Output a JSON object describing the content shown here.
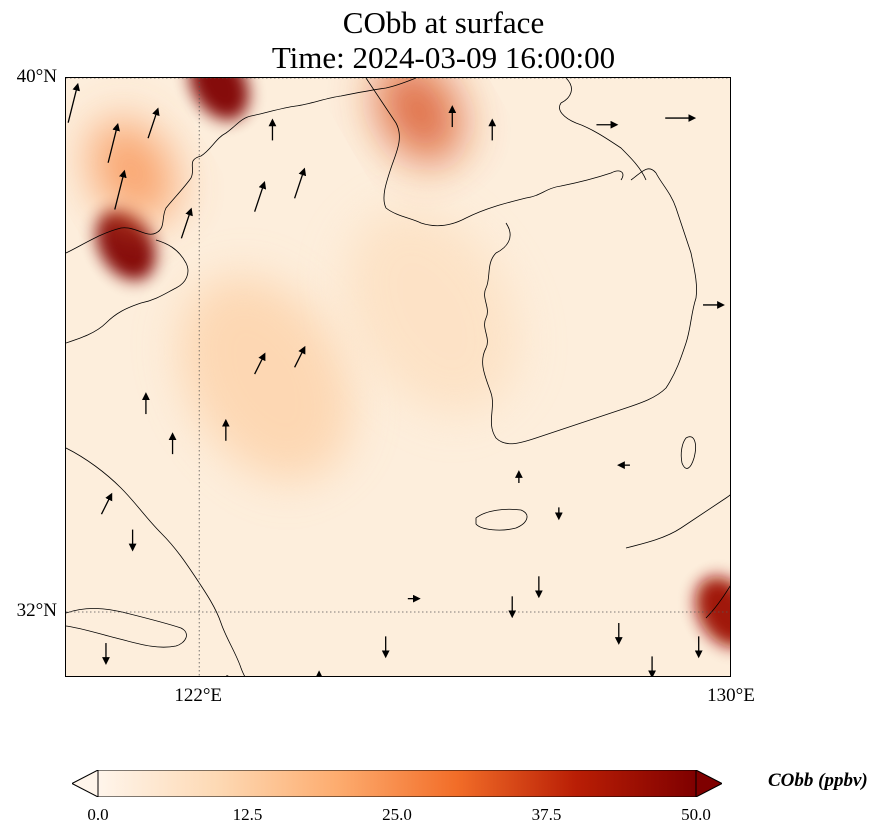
{
  "title": {
    "line1": "CObb at surface",
    "line2": "Time: 2024-03-09 16:00:00"
  },
  "axes": {
    "lat_ticks": [
      {
        "label": "40°N",
        "value": 40
      },
      {
        "label": "32°N",
        "value": 32
      }
    ],
    "lon_ticks": [
      {
        "label": "122°E",
        "value": 122
      },
      {
        "label": "130°E",
        "value": 130
      }
    ],
    "lon_range": [
      120,
      130
    ],
    "lat_range": [
      31,
      40
    ],
    "gridlines": "dotted"
  },
  "colorbar": {
    "label": "CObb (ppbv)",
    "min": 0.0,
    "max": 50.0,
    "extend": "both",
    "ticks": [
      "0.0",
      "12.5",
      "25.0",
      "37.5",
      "50.0"
    ],
    "colors": [
      "#fff5eb",
      "#fdd9b4",
      "#fdac6f",
      "#f26d28",
      "#b91e05",
      "#7f0000"
    ]
  },
  "field": {
    "variable": "CObb",
    "units": "ppbv",
    "background": "#fdeedc",
    "features": [
      {
        "lon": 120.9,
        "lat": 37.5,
        "level": 50
      },
      {
        "lon": 122.3,
        "lat": 39.9,
        "level": 50
      },
      {
        "lon": 125.3,
        "lat": 39.5,
        "level": 35
      },
      {
        "lon": 121.0,
        "lat": 38.6,
        "level": 25
      },
      {
        "lon": 129.9,
        "lat": 32.0,
        "level": 45
      },
      {
        "lon": 123.0,
        "lat": 35.5,
        "level": 12
      },
      {
        "lon": 125.5,
        "lat": 36.5,
        "level": 8
      }
    ]
  },
  "wind_arrows": [
    {
      "lon": 120.1,
      "lat": 39.6,
      "u": 1,
      "v": 4
    },
    {
      "lon": 120.7,
      "lat": 39.0,
      "u": 1,
      "v": 4
    },
    {
      "lon": 120.8,
      "lat": 38.3,
      "u": 1,
      "v": 4
    },
    {
      "lon": 121.8,
      "lat": 37.8,
      "u": 1,
      "v": 3
    },
    {
      "lon": 121.3,
      "lat": 39.3,
      "u": 1,
      "v": 3
    },
    {
      "lon": 122.9,
      "lat": 38.2,
      "u": 1,
      "v": 3
    },
    {
      "lon": 123.5,
      "lat": 38.4,
      "u": 1,
      "v": 3
    },
    {
      "lon": 123.1,
      "lat": 39.2,
      "u": 0,
      "v": 2
    },
    {
      "lon": 121.2,
      "lat": 35.1,
      "u": 0,
      "v": 2
    },
    {
      "lon": 121.6,
      "lat": 34.5,
      "u": 0,
      "v": 2
    },
    {
      "lon": 122.4,
      "lat": 34.7,
      "u": 0,
      "v": 2
    },
    {
      "lon": 122.9,
      "lat": 35.7,
      "u": 1,
      "v": 2
    },
    {
      "lon": 123.5,
      "lat": 35.8,
      "u": 1,
      "v": 2
    },
    {
      "lon": 125.8,
      "lat": 39.4,
      "u": 0,
      "v": 2
    },
    {
      "lon": 126.4,
      "lat": 39.2,
      "u": 0,
      "v": 2
    },
    {
      "lon": 129.2,
      "lat": 39.4,
      "u": 3,
      "v": 0
    },
    {
      "lon": 128.1,
      "lat": 39.3,
      "u": 2,
      "v": 0
    },
    {
      "lon": 129.7,
      "lat": 36.6,
      "u": 2,
      "v": 0
    },
    {
      "lon": 120.6,
      "lat": 33.6,
      "u": 1,
      "v": 2
    },
    {
      "lon": 121.0,
      "lat": 33.1,
      "u": 0,
      "v": -2
    },
    {
      "lon": 124.8,
      "lat": 31.5,
      "u": 0,
      "v": -2
    },
    {
      "lon": 126.7,
      "lat": 32.1,
      "u": 0,
      "v": -2
    },
    {
      "lon": 127.1,
      "lat": 32.4,
      "u": 0,
      "v": -2
    },
    {
      "lon": 128.3,
      "lat": 31.7,
      "u": 0,
      "v": -2
    },
    {
      "lon": 129.5,
      "lat": 31.5,
      "u": 0,
      "v": -2
    },
    {
      "lon": 128.8,
      "lat": 31.2,
      "u": 0,
      "v": -2
    },
    {
      "lon": 120.6,
      "lat": 31.4,
      "u": 0,
      "v": -2
    },
    {
      "lon": 122.4,
      "lat": 31.0,
      "u": 1,
      "v": 0
    },
    {
      "lon": 123.8,
      "lat": 31.0,
      "u": 0,
      "v": 1
    },
    {
      "lon": 125.2,
      "lat": 32.2,
      "u": 1,
      "v": 0
    },
    {
      "lon": 127.4,
      "lat": 33.5,
      "u": 0,
      "v": -1
    },
    {
      "lon": 126.8,
      "lat": 34.0,
      "u": 0,
      "v": 1
    },
    {
      "lon": 128.4,
      "lat": 34.2,
      "u": -1,
      "v": 0
    }
  ]
}
